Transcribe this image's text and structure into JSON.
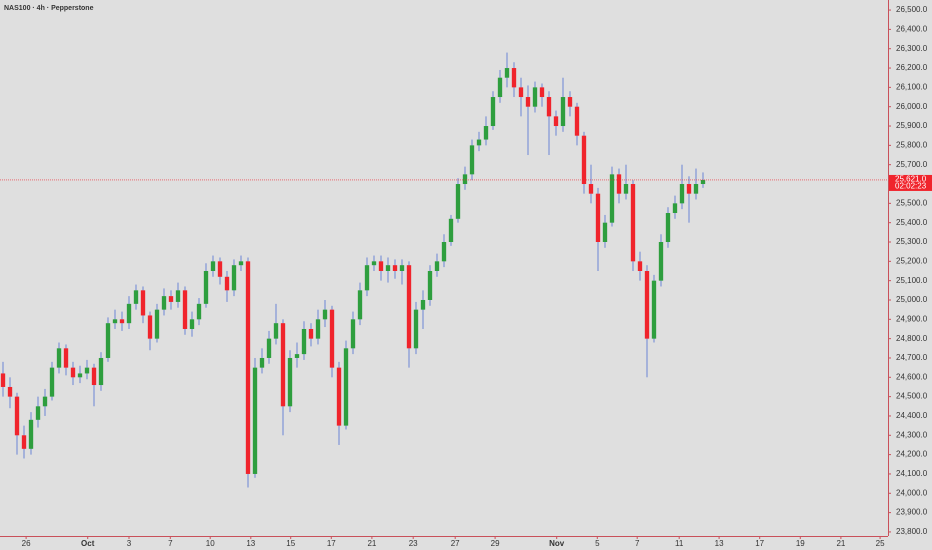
{
  "chart_data": {
    "type": "candlestick",
    "title": "NAS100 · 4h · Pepperstone",
    "up_color": "#2e9e3e",
    "down_color": "#f0242c",
    "wick_color": "#6b86d6",
    "open": [
      24620,
      24550,
      24500,
      24300,
      24230,
      24380,
      24450,
      24500,
      24650,
      24750,
      24650,
      24600,
      24620,
      24650,
      24560,
      24700,
      24880,
      24900,
      24880,
      24980,
      25050,
      24920,
      24800,
      24950,
      25020,
      24990,
      25050,
      24850,
      24900,
      24980,
      25150,
      25200,
      25120,
      25050,
      25180,
      25200,
      24100,
      24650,
      24700,
      24800,
      24880,
      24450,
      24700,
      24720,
      24850,
      24800,
      24900,
      24950,
      24650,
      24350,
      24750,
      24900,
      25050,
      25180,
      25200,
      25150,
      25180,
      25150,
      25180,
      24750,
      24950,
      25000,
      25150,
      25200,
      25300,
      25420,
      25600,
      25650,
      25800,
      25830,
      25900,
      26050,
      26150,
      26200,
      26100,
      26050,
      26000,
      26100,
      26050,
      25950,
      25900,
      26050,
      26000,
      25850,
      25600,
      25550,
      25300,
      25400,
      25650,
      25550,
      25600,
      25200,
      25150,
      24800,
      25100,
      25300,
      25450,
      25500,
      25600,
      25550,
      25600
    ],
    "high": [
      24680,
      24600,
      24520,
      24350,
      24420,
      24500,
      24540,
      24680,
      24780,
      24770,
      24680,
      24660,
      24690,
      24670,
      24730,
      24910,
      24950,
      24940,
      25020,
      25080,
      25070,
      24940,
      24980,
      25060,
      25050,
      25090,
      25070,
      24940,
      25010,
      25190,
      25230,
      25220,
      25150,
      25210,
      25230,
      25220,
      24700,
      24750,
      24840,
      24980,
      24900,
      24740,
      24780,
      24890,
      24880,
      24950,
      25000,
      24970,
      24680,
      24790,
      24940,
      25090,
      25220,
      25230,
      25230,
      25220,
      25210,
      25210,
      25200,
      24990,
      25050,
      25180,
      25240,
      25340,
      25440,
      25630,
      25690,
      25830,
      25870,
      25950,
      26080,
      26190,
      26280,
      26230,
      26150,
      26110,
      26130,
      26120,
      26080,
      25980,
      26150,
      26080,
      26020,
      25870,
      25700,
      25580,
      25440,
      25690,
      25680,
      25700,
      25620,
      25250,
      25180,
      25130,
      25340,
      25480,
      25540,
      25700,
      25640,
      25680,
      25660
    ],
    "low": [
      24500,
      24440,
      24200,
      24180,
      24200,
      24340,
      24400,
      24480,
      24620,
      24610,
      24560,
      24570,
      24590,
      24450,
      24530,
      24680,
      24850,
      24840,
      24850,
      24950,
      24880,
      24740,
      24780,
      24920,
      24950,
      24960,
      24820,
      24810,
      24870,
      24960,
      25120,
      25080,
      24990,
      25020,
      25150,
      24030,
      24080,
      24620,
      24670,
      24770,
      24300,
      24420,
      24650,
      24690,
      24760,
      24770,
      24860,
      24600,
      24250,
      24330,
      24720,
      24870,
      25020,
      25150,
      25100,
      25090,
      25110,
      25080,
      24650,
      24720,
      24850,
      24970,
      25120,
      25170,
      25280,
      25400,
      25570,
      25620,
      25770,
      25800,
      25880,
      26020,
      26100,
      26050,
      25950,
      25750,
      25970,
      26000,
      25750,
      25850,
      25870,
      25950,
      25800,
      25550,
      25500,
      25150,
      25270,
      25380,
      25500,
      25520,
      25150,
      25100,
      24600,
      24780,
      25070,
      25270,
      25420,
      25470,
      25400,
      25520,
      25580
    ],
    "close": [
      24550,
      24500,
      24300,
      24230,
      24380,
      24450,
      24500,
      24650,
      24750,
      24650,
      24600,
      24620,
      24650,
      24560,
      24700,
      24880,
      24900,
      24880,
      24980,
      25050,
      24920,
      24800,
      24950,
      25020,
      24990,
      25050,
      24850,
      24900,
      24980,
      25150,
      25200,
      25120,
      25050,
      25180,
      25200,
      24100,
      24650,
      24700,
      24800,
      24880,
      24450,
      24700,
      24720,
      24850,
      24800,
      24900,
      24950,
      24650,
      24350,
      24750,
      24900,
      25050,
      25180,
      25200,
      25150,
      25180,
      25150,
      25180,
      24750,
      24950,
      25000,
      25150,
      25200,
      25300,
      25420,
      25600,
      25650,
      25800,
      25830,
      25900,
      26050,
      26150,
      26200,
      26100,
      26050,
      26000,
      26100,
      26050,
      25950,
      25900,
      26050,
      26000,
      25850,
      25600,
      25550,
      25300,
      25400,
      25650,
      25550,
      25600,
      25200,
      25150,
      24800,
      25100,
      25300,
      25450,
      25500,
      25600,
      25550,
      25600,
      25621
    ],
    "current_price": {
      "value": 25621,
      "label": "25,621.0"
    },
    "countdown": "02:02:23",
    "xlim": [
      -0.43,
      126.43
    ],
    "xticks": [
      {
        "value": 3.3,
        "label": "26"
      },
      {
        "value": 12.1,
        "label": "Oct"
      },
      {
        "value": 18,
        "label": "3"
      },
      {
        "value": 23.9,
        "label": "7"
      },
      {
        "value": 29.6,
        "label": "10"
      },
      {
        "value": 35.4,
        "label": "13"
      },
      {
        "value": 41.1,
        "label": "15"
      },
      {
        "value": 46.9,
        "label": "17"
      },
      {
        "value": 52.7,
        "label": "21"
      },
      {
        "value": 58.6,
        "label": "23"
      },
      {
        "value": 64.6,
        "label": "27"
      },
      {
        "value": 70.3,
        "label": "29"
      },
      {
        "value": 79.1,
        "label": "Nov"
      },
      {
        "value": 84.9,
        "label": "5"
      },
      {
        "value": 90.6,
        "label": "7"
      },
      {
        "value": 96.6,
        "label": "11"
      },
      {
        "value": 102.3,
        "label": "13"
      },
      {
        "value": 108.1,
        "label": "17"
      },
      {
        "value": 113.9,
        "label": "19"
      },
      {
        "value": 119.7,
        "label": "21"
      },
      {
        "value": 125.3,
        "label": "25"
      }
    ],
    "ylim": [
      23779,
      26552
    ],
    "yticks": [
      {
        "value": 26500,
        "label": "26,500.0"
      },
      {
        "value": 26400,
        "label": "26,400.0"
      },
      {
        "value": 26300,
        "label": "26,300.0"
      },
      {
        "value": 26200,
        "label": "26,200.0"
      },
      {
        "value": 26100,
        "label": "26,100.0"
      },
      {
        "value": 26000,
        "label": "26,000.0"
      },
      {
        "value": 25900,
        "label": "25,900.0"
      },
      {
        "value": 25800,
        "label": "25,800.0"
      },
      {
        "value": 25700,
        "label": "25,700.0"
      },
      {
        "value": 25600,
        "label": "25,600.0"
      },
      {
        "value": 25500,
        "label": "25,500.0"
      },
      {
        "value": 25400,
        "label": "25,400.0"
      },
      {
        "value": 25300,
        "label": "25,300.0"
      },
      {
        "value": 25200,
        "label": "25,200.0"
      },
      {
        "value": 25100,
        "label": "25,100.0"
      },
      {
        "value": 25000,
        "label": "25,000.0"
      },
      {
        "value": 24900,
        "label": "24,900.0"
      },
      {
        "value": 24800,
        "label": "24,800.0"
      },
      {
        "value": 24700,
        "label": "24,700.0"
      },
      {
        "value": 24600,
        "label": "24,600.0"
      },
      {
        "value": 24500,
        "label": "24,500.0"
      },
      {
        "value": 24400,
        "label": "24,400.0"
      },
      {
        "value": 24300,
        "label": "24,300.0"
      },
      {
        "value": 24200,
        "label": "24,200.0"
      },
      {
        "value": 24100,
        "label": "24,100.0"
      },
      {
        "value": 24000,
        "label": "24,000.0"
      },
      {
        "value": 23900,
        "label": "23,900.0"
      },
      {
        "value": 23800,
        "label": "23,800.0"
      }
    ]
  }
}
